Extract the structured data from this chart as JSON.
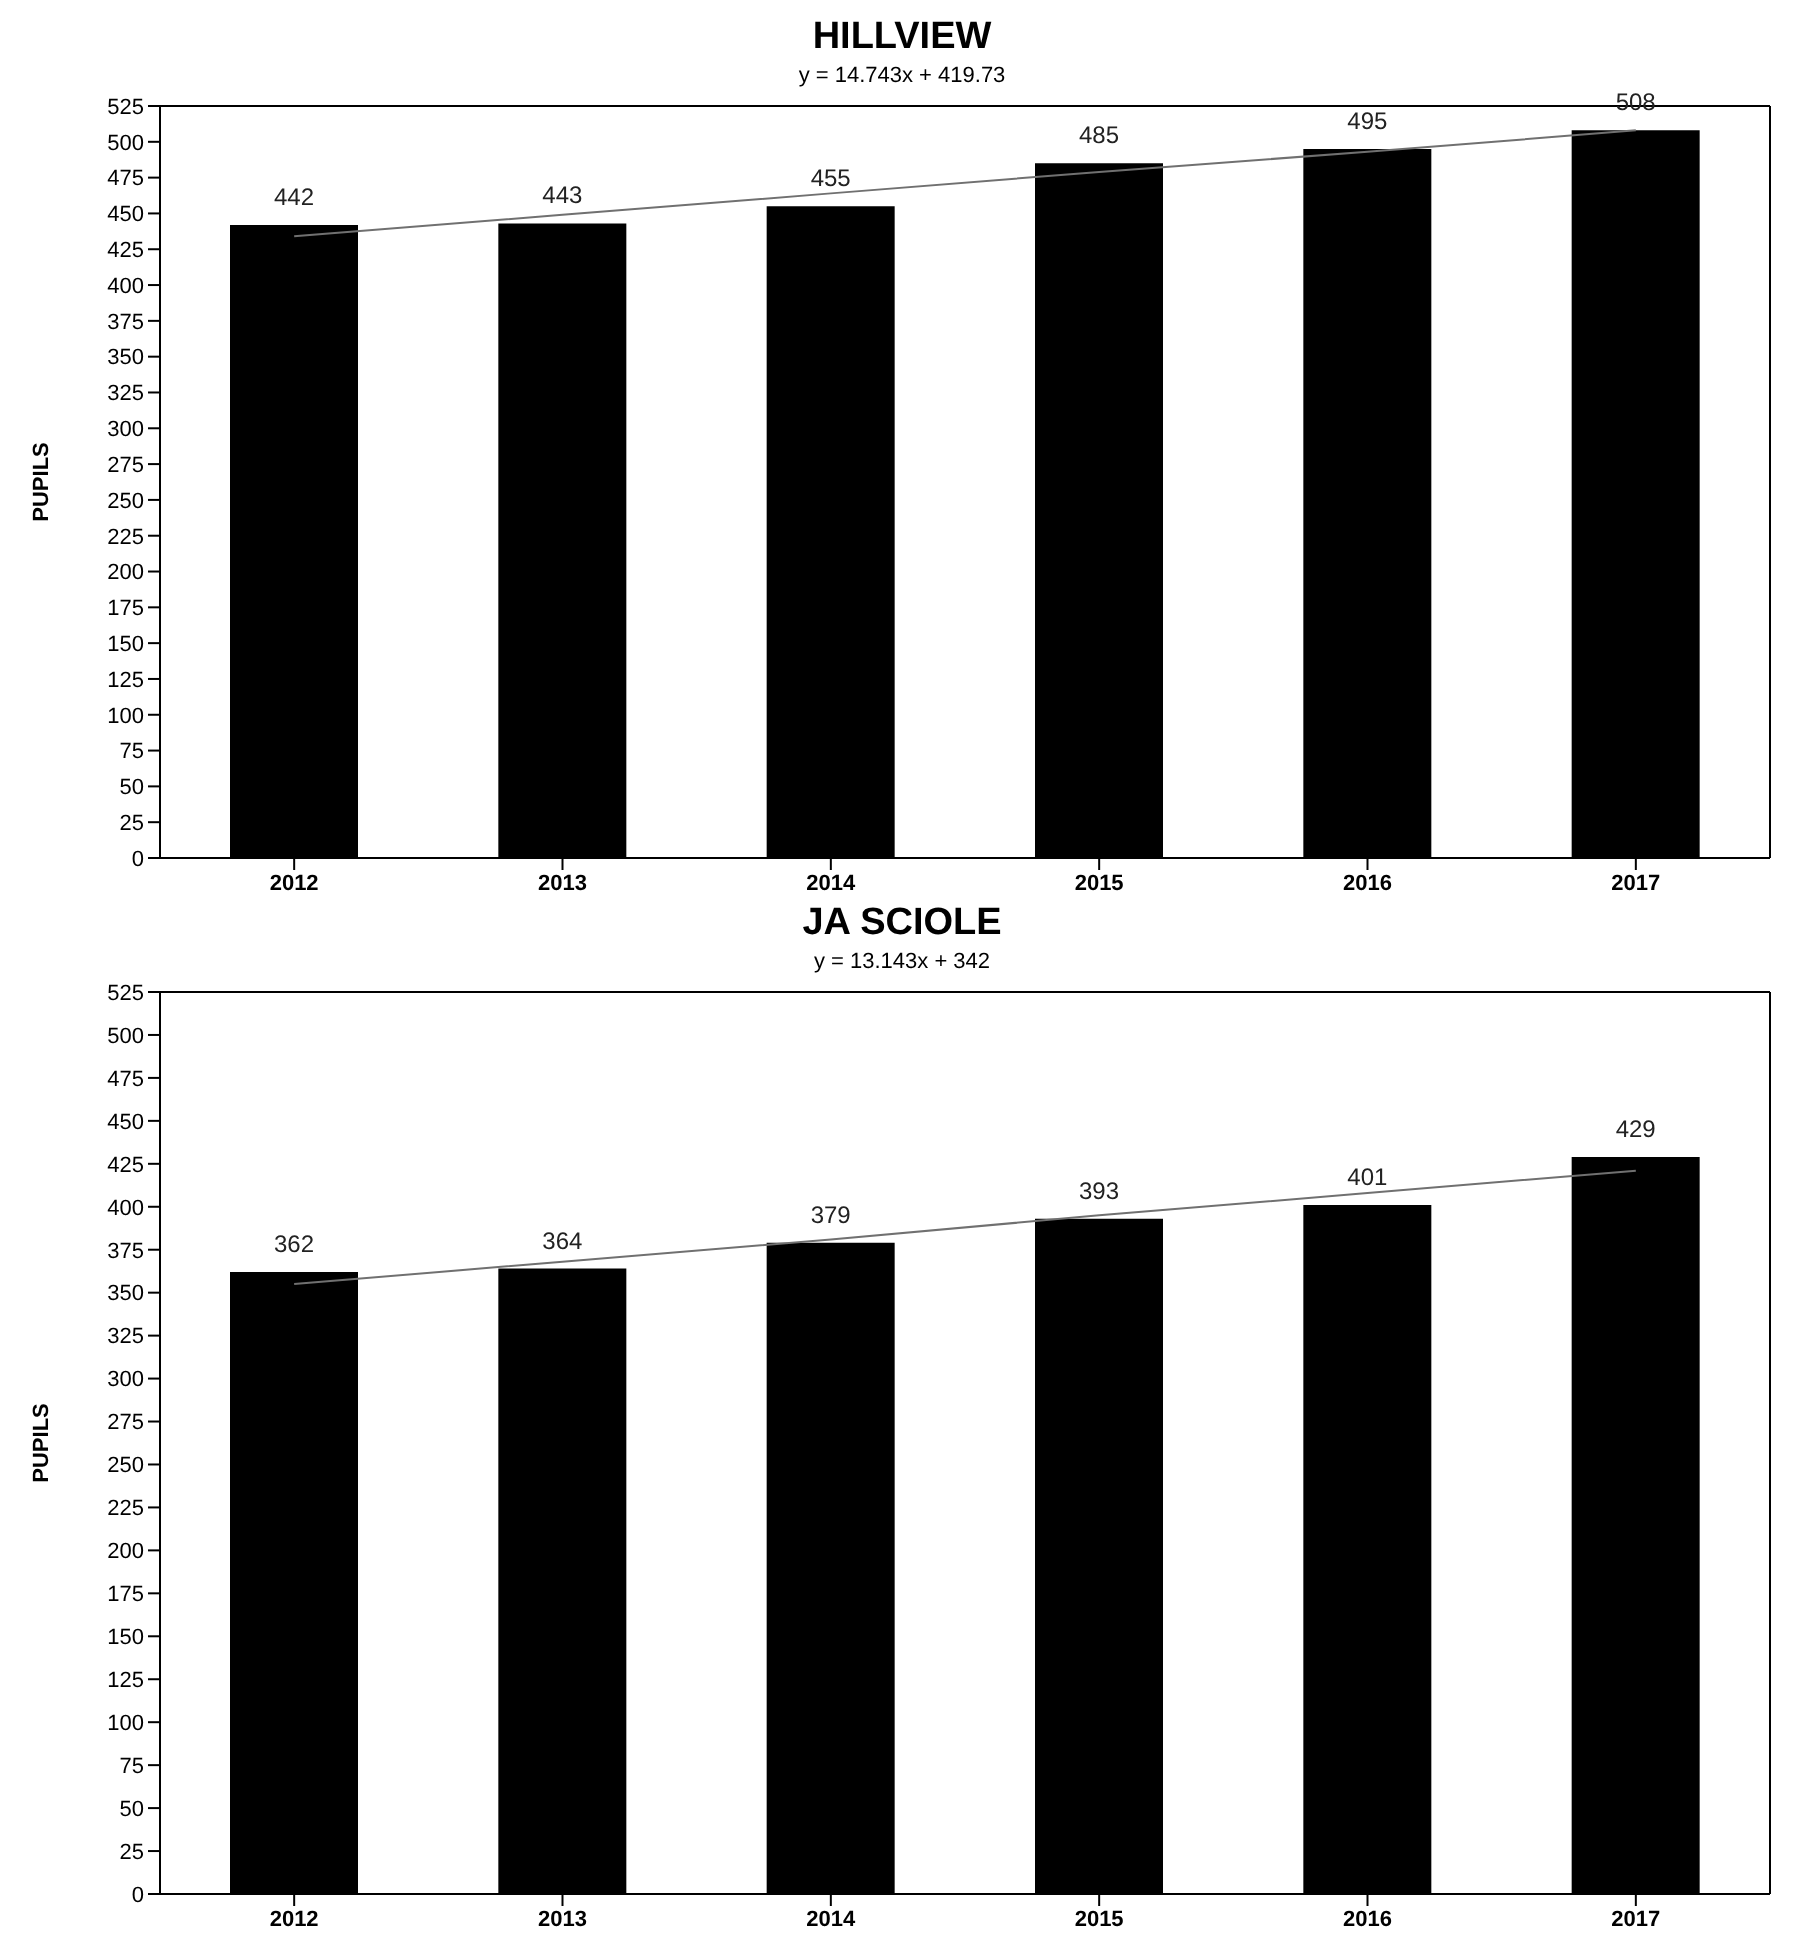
{
  "chart_data": [
    {
      "type": "bar",
      "title": "HILLVIEW",
      "subtitle": "y = 14.743x + 419.73",
      "ylabel": "PUPILS",
      "categories": [
        "2012",
        "2013",
        "2014",
        "2015",
        "2016",
        "2017"
      ],
      "series": [
        {
          "color": "#000000",
          "values": [
            442,
            443,
            455,
            485,
            495,
            508
          ],
          "value_labels": [
            "442",
            "443",
            "455",
            "485",
            "495",
            "508"
          ]
        },
        {
          "type": "line",
          "color": "#707070",
          "values": [
            434,
            449,
            464,
            479,
            493,
            508
          ]
        }
      ],
      "ylim": [
        0,
        525
      ],
      "yticks": [
        0,
        25,
        50,
        75,
        100,
        125,
        150,
        175,
        200,
        225,
        250,
        275,
        300,
        325,
        350,
        375,
        400,
        425,
        450,
        475,
        500,
        525
      ],
      "grid": false,
      "marker": "none"
    },
    {
      "type": "bar",
      "title": "JA SCIOLE",
      "subtitle": "y = 13.143x + 342",
      "ylabel": "PUPILS",
      "categories": [
        "2012",
        "2013",
        "2014",
        "2015",
        "2016",
        "2017"
      ],
      "series": [
        {
          "color": "#000000",
          "values": [
            362,
            364,
            379,
            393,
            401,
            429
          ],
          "value_labels": [
            "362",
            "364",
            "379",
            "393",
            "401",
            "429"
          ]
        },
        {
          "type": "line",
          "color": "#707070",
          "values": [
            355,
            368,
            381,
            395,
            408,
            421
          ]
        }
      ],
      "ylim": [
        0,
        525
      ],
      "yticks": [
        0,
        25,
        50,
        75,
        100,
        125,
        150,
        175,
        200,
        225,
        250,
        275,
        300,
        325,
        350,
        375,
        400,
        425,
        450,
        475,
        500,
        525
      ],
      "grid": false,
      "marker": "none"
    }
  ]
}
